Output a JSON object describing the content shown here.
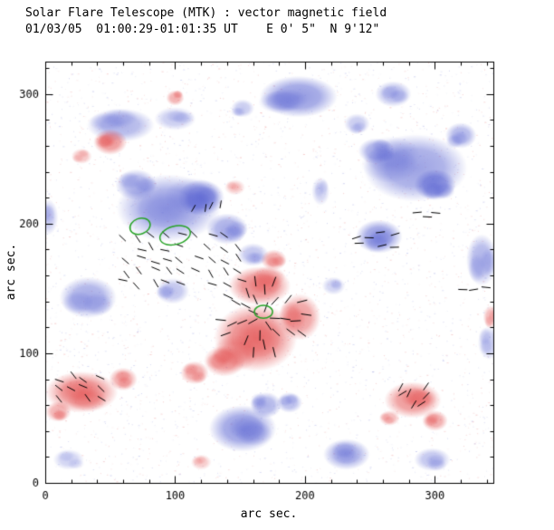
{
  "chart_data": {
    "type": "heatmap",
    "title": "Solar Flare Telescope (MTK) : vector magnetic field",
    "subtitle": "01/03/05  01:00:29-01:01:35 UT    E 0' 5\"  N 9'12\"",
    "xlabel": "arc sec.",
    "ylabel": "arc sec.",
    "xlim": [
      0,
      345
    ],
    "ylim": [
      0,
      325
    ],
    "xticks": [
      0,
      100,
      200,
      300
    ],
    "yticks": [
      0,
      100,
      200,
      300
    ],
    "minor_tick_interval": 20,
    "grid": false,
    "legend_position": "none",
    "colors": {
      "positive": "#e24646",
      "negative": "#5a64d2",
      "contour": "#27a327",
      "vector": "#000000",
      "frame": "#000000",
      "background": "#ffffff"
    },
    "blob_format": [
      "x_arcsec",
      "y_arcsec",
      "rx_arcsec",
      "ry_arcsec",
      "peak_alpha",
      "polarity p=red n=blue"
    ],
    "blobs": [
      [
        195,
        298,
        30,
        16,
        0.65,
        "n"
      ],
      [
        152,
        289,
        9,
        7,
        0.35,
        "n"
      ],
      [
        58,
        276,
        26,
        13,
        0.5,
        "n"
      ],
      [
        100,
        281,
        16,
        9,
        0.35,
        "n"
      ],
      [
        95,
        212,
        40,
        26,
        0.6,
        "n"
      ],
      [
        120,
        220,
        18,
        14,
        0.7,
        "n"
      ],
      [
        70,
        230,
        16,
        12,
        0.5,
        "n"
      ],
      [
        140,
        196,
        16,
        12,
        0.55,
        "n"
      ],
      [
        160,
        176,
        12,
        9,
        0.4,
        "n"
      ],
      [
        33,
        143,
        22,
        16,
        0.55,
        "n"
      ],
      [
        98,
        148,
        13,
        10,
        0.4,
        "n"
      ],
      [
        285,
        243,
        40,
        26,
        0.6,
        "n"
      ],
      [
        300,
        230,
        16,
        12,
        0.7,
        "n"
      ],
      [
        255,
        256,
        14,
        10,
        0.5,
        "n"
      ],
      [
        320,
        268,
        12,
        10,
        0.5,
        "n"
      ],
      [
        257,
        190,
        18,
        13,
        0.65,
        "n"
      ],
      [
        336,
        172,
        12,
        20,
        0.5,
        "n"
      ],
      [
        222,
        152,
        9,
        7,
        0.3,
        "n"
      ],
      [
        152,
        42,
        26,
        18,
        0.65,
        "n"
      ],
      [
        170,
        60,
        12,
        10,
        0.5,
        "n"
      ],
      [
        188,
        62,
        10,
        8,
        0.45,
        "n"
      ],
      [
        232,
        22,
        18,
        12,
        0.55,
        "n"
      ],
      [
        298,
        18,
        14,
        9,
        0.4,
        "n"
      ],
      [
        18,
        18,
        12,
        8,
        0.3,
        "n"
      ],
      [
        2,
        205,
        8,
        14,
        0.35,
        "n"
      ],
      [
        342,
        108,
        9,
        13,
        0.35,
        "n"
      ],
      [
        212,
        225,
        7,
        11,
        0.3,
        "n"
      ],
      [
        268,
        300,
        14,
        10,
        0.45,
        "n"
      ],
      [
        240,
        277,
        10,
        8,
        0.35,
        "n"
      ],
      [
        50,
        263,
        13,
        10,
        0.6,
        "p"
      ],
      [
        28,
        252,
        8,
        6,
        0.35,
        "p"
      ],
      [
        100,
        297,
        7,
        6,
        0.45,
        "p"
      ],
      [
        165,
        152,
        24,
        15,
        0.65,
        "p"
      ],
      [
        162,
        112,
        32,
        26,
        0.7,
        "p"
      ],
      [
        138,
        94,
        16,
        12,
        0.55,
        "p"
      ],
      [
        196,
        128,
        16,
        18,
        0.55,
        "p"
      ],
      [
        176,
        172,
        10,
        8,
        0.5,
        "p"
      ],
      [
        115,
        85,
        11,
        9,
        0.5,
        "p"
      ],
      [
        28,
        70,
        28,
        16,
        0.65,
        "p"
      ],
      [
        60,
        80,
        11,
        9,
        0.5,
        "p"
      ],
      [
        10,
        55,
        10,
        8,
        0.45,
        "p"
      ],
      [
        283,
        64,
        22,
        14,
        0.6,
        "p"
      ],
      [
        300,
        48,
        10,
        8,
        0.5,
        "p"
      ],
      [
        265,
        50,
        8,
        6,
        0.4,
        "p"
      ],
      [
        120,
        16,
        8,
        6,
        0.3,
        "p"
      ],
      [
        343,
        128,
        6,
        9,
        0.4,
        "p"
      ],
      [
        146,
        228,
        8,
        6,
        0.3,
        "p"
      ]
    ],
    "contours": [
      {
        "x": 73,
        "y": 198,
        "rx": 8,
        "ry": 6,
        "rot": 20
      },
      {
        "x": 100,
        "y": 191,
        "rx": 12,
        "ry": 7,
        "rot": 15
      },
      {
        "x": 168,
        "y": 132,
        "rx": 7,
        "ry": 5,
        "rot": 0
      }
    ],
    "vector_clusters": [
      {
        "type": "grid",
        "cx": 105,
        "cy": 172,
        "nx": 9,
        "ny": 5,
        "sx": 11,
        "sy": 9,
        "angle": -35,
        "jitter": 28,
        "len": 7,
        "skip": 0.18
      },
      {
        "type": "grid",
        "cx": 125,
        "cy": 214,
        "nx": 4,
        "ny": 1,
        "sx": 8,
        "sy": 6,
        "angle": 75,
        "jitter": 15,
        "len": 6,
        "skip": 0
      },
      {
        "type": "grid",
        "cx": 255,
        "cy": 187,
        "nx": 4,
        "ny": 2,
        "sx": 9,
        "sy": 8,
        "angle": 5,
        "jitter": 14,
        "len": 7,
        "skip": 0.1
      },
      {
        "type": "grid",
        "cx": 294,
        "cy": 207,
        "nx": 3,
        "ny": 1,
        "sx": 9,
        "sy": 6,
        "angle": 0,
        "jitter": 10,
        "len": 7,
        "skip": 0
      },
      {
        "type": "grid",
        "cx": 332,
        "cy": 149,
        "nx": 3,
        "ny": 1,
        "sx": 8,
        "sy": 6,
        "angle": 0,
        "jitter": 10,
        "len": 7,
        "skip": 0
      },
      {
        "type": "grid",
        "cx": 25,
        "cy": 73,
        "nx": 4,
        "ny": 3,
        "sx": 11,
        "sy": 8,
        "angle": -30,
        "jitter": 25,
        "len": 7,
        "skip": 0.15
      },
      {
        "type": "grid",
        "cx": 282,
        "cy": 67,
        "nx": 3,
        "ny": 3,
        "sx": 9,
        "sy": 8,
        "angle": 40,
        "jitter": 25,
        "len": 7,
        "skip": 0.15
      },
      {
        "type": "radial",
        "cx": 168,
        "cy": 128,
        "rings": [
          9,
          17,
          25,
          33
        ],
        "per_ring": [
          5,
          7,
          9,
          10
        ],
        "jitter": 12,
        "len": 8
      }
    ],
    "noise": {
      "seed": 7,
      "count": 3500
    }
  }
}
